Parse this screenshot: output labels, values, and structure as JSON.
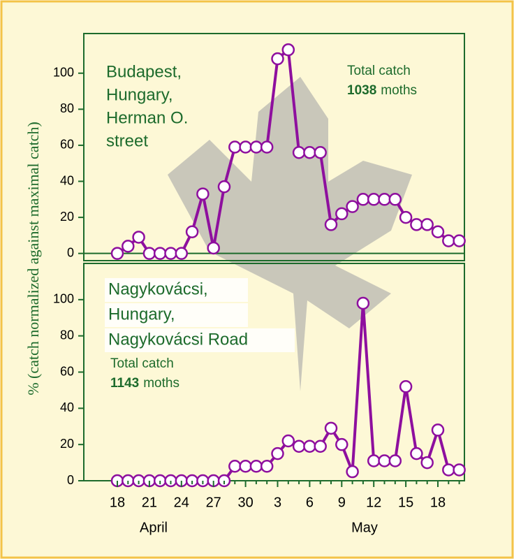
{
  "chart_data": [
    {
      "type": "line",
      "ylabel": "% (catch normalized against maximal catch)",
      "location": [
        "Budapest,",
        "Hungary,",
        "Herman O.",
        "street"
      ],
      "catch_label": "Total catch",
      "total_catch": 1038,
      "catch_unit": "moths",
      "categories": [
        "18",
        null,
        null,
        "21",
        null,
        null,
        "24",
        null,
        null,
        "27",
        null,
        null,
        "30",
        null,
        null,
        "3",
        null,
        null,
        "6",
        null,
        null,
        "9",
        null,
        null,
        "12",
        null,
        null,
        "15",
        null,
        null,
        "18",
        null,
        null
      ],
      "month_labels": [
        "April",
        "May"
      ],
      "series": [
        {
          "color": "#8e0f9e",
          "values": [
            0,
            4,
            9,
            0,
            0,
            0,
            0,
            12,
            33,
            3,
            37,
            59,
            59,
            59,
            59,
            108,
            113,
            56,
            56,
            56,
            16,
            22,
            26,
            30,
            30,
            30,
            30,
            20,
            16,
            16,
            12,
            7,
            7
          ]
        }
      ],
      "ylim": [
        -4,
        122
      ],
      "yticks": [
        0,
        20,
        40,
        60,
        80,
        100
      ]
    },
    {
      "type": "line",
      "location": [
        "Nagykovácsi,",
        "Hungary,",
        "Nagykovácsi Road"
      ],
      "catch_label": "Total catch",
      "total_catch": 1143,
      "catch_unit": "moths",
      "series": [
        {
          "color": "#8e0f9e",
          "values": [
            0,
            0,
            0,
            0,
            0,
            0,
            0,
            0,
            0,
            0,
            0,
            8,
            8,
            8,
            8,
            15,
            22,
            19,
            19,
            19,
            29,
            20,
            5,
            98,
            11,
            11,
            11,
            52,
            15,
            10,
            28,
            6,
            6
          ]
        }
      ],
      "ylim": [
        0,
        120
      ],
      "yticks": [
        0,
        20,
        40,
        60,
        80,
        100
      ]
    }
  ]
}
